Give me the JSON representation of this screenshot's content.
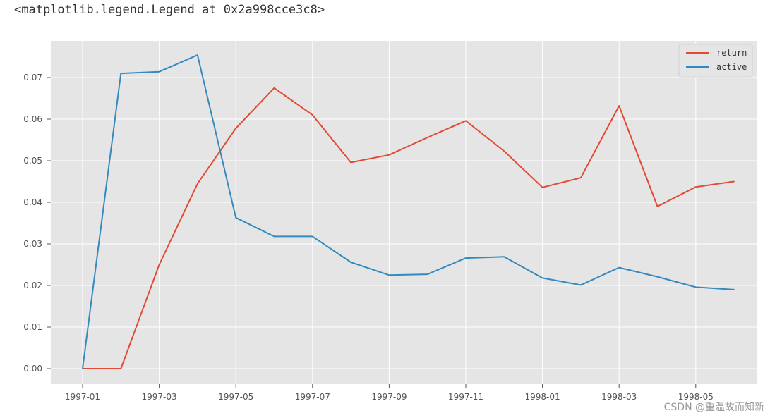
{
  "header": {
    "repr_text": "<matplotlib.legend.Legend at 0x2a998cce3c8>"
  },
  "watermark": {
    "text": "CSDN @重温故而知新"
  },
  "chart_data": {
    "type": "line",
    "title": "",
    "xlabel": "",
    "ylabel": "",
    "x": [
      "1997-01",
      "1997-02",
      "1997-03",
      "1997-04",
      "1997-05",
      "1997-06",
      "1997-07",
      "1997-08",
      "1997-09",
      "1997-10",
      "1997-11",
      "1997-12",
      "1998-01",
      "1998-02",
      "1998-03",
      "1998-04",
      "1998-05",
      "1998-06"
    ],
    "x_tick_labels": [
      "1997-01",
      "1997-03",
      "1997-05",
      "1997-07",
      "1997-09",
      "1997-11",
      "1998-01",
      "1998-03",
      "1998-05"
    ],
    "y_ticks": [
      "0.00",
      "0.01",
      "0.02",
      "0.03",
      "0.04",
      "0.05",
      "0.06",
      "0.07"
    ],
    "ylim": [
      -0.004,
      0.078
    ],
    "grid": true,
    "legend_placement": "top-right",
    "colors": {
      "return": "#E24A33",
      "active": "#348ABD",
      "plot_background": "#E5E5E5",
      "grid": "#FFFFFF"
    },
    "series": [
      {
        "name": "return",
        "values": [
          0.0,
          0.0,
          0.025,
          0.0445,
          0.0578,
          0.0675,
          0.061,
          0.0496,
          0.0514,
          0.0556,
          0.0596,
          0.0523,
          0.0436,
          0.0459,
          0.0632,
          0.039,
          0.0437,
          0.045
        ]
      },
      {
        "name": "active",
        "values": [
          0.0,
          0.071,
          0.0714,
          0.0754,
          0.0363,
          0.0318,
          0.0318,
          0.0256,
          0.0225,
          0.0227,
          0.0266,
          0.0269,
          0.0218,
          0.0201,
          0.0243,
          0.0221,
          0.0196,
          0.019
        ]
      }
    ]
  }
}
